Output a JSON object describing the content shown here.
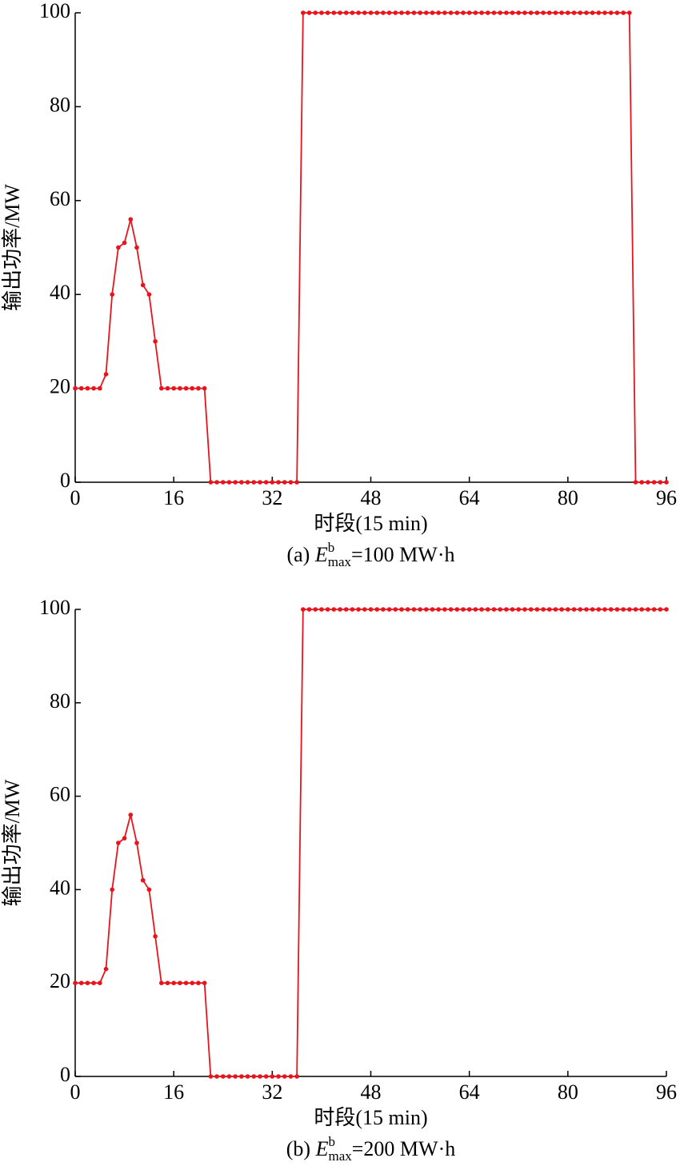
{
  "chart_data": [
    {
      "type": "line",
      "xlabel": "时段(15 min)",
      "ylabel": "输出功率/MW",
      "caption": {
        "prefix": "(a) ",
        "symbol": "E",
        "sup": "b",
        "sub": "max",
        "suffix": "=100 MW·h"
      },
      "xlim": [
        0,
        96
      ],
      "xticks": [
        0,
        16,
        32,
        48,
        64,
        80,
        96
      ],
      "ylim": [
        0,
        100
      ],
      "yticks": [
        0,
        20,
        40,
        60,
        80,
        100
      ],
      "color": "#e8141c",
      "x": [
        0,
        1,
        2,
        3,
        4,
        5,
        6,
        7,
        8,
        9,
        10,
        11,
        12,
        13,
        14,
        15,
        16,
        17,
        18,
        19,
        20,
        21,
        22,
        23,
        24,
        25,
        26,
        27,
        28,
        29,
        30,
        31,
        32,
        33,
        34,
        35,
        36,
        37,
        38,
        39,
        40,
        41,
        42,
        43,
        44,
        45,
        46,
        47,
        48,
        49,
        50,
        51,
        52,
        53,
        54,
        55,
        56,
        57,
        58,
        59,
        60,
        61,
        62,
        63,
        64,
        65,
        66,
        67,
        68,
        69,
        70,
        71,
        72,
        73,
        74,
        75,
        76,
        77,
        78,
        79,
        80,
        81,
        82,
        83,
        84,
        85,
        86,
        87,
        88,
        89,
        90,
        91,
        92,
        93,
        94,
        95,
        96
      ],
      "values": [
        20,
        20,
        20,
        20,
        20,
        23,
        40,
        50,
        51,
        56,
        50,
        42,
        40,
        30,
        20,
        20,
        20,
        20,
        20,
        20,
        20,
        20,
        0,
        0,
        0,
        0,
        0,
        0,
        0,
        0,
        0,
        0,
        0,
        0,
        0,
        0,
        0,
        100,
        100,
        100,
        100,
        100,
        100,
        100,
        100,
        100,
        100,
        100,
        100,
        100,
        100,
        100,
        100,
        100,
        100,
        100,
        100,
        100,
        100,
        100,
        100,
        100,
        100,
        100,
        100,
        100,
        100,
        100,
        100,
        100,
        100,
        100,
        100,
        100,
        100,
        100,
        100,
        100,
        100,
        100,
        100,
        100,
        100,
        100,
        100,
        100,
        100,
        100,
        100,
        100,
        100,
        0,
        0,
        0,
        0,
        0,
        0
      ]
    },
    {
      "type": "line",
      "xlabel": "时段(15 min)",
      "ylabel": "输出功率/MW",
      "caption": {
        "prefix": "(b) ",
        "symbol": "E",
        "sup": "b",
        "sub": "max",
        "suffix": "=200 MW·h"
      },
      "xlim": [
        0,
        96
      ],
      "xticks": [
        0,
        16,
        32,
        48,
        64,
        80,
        96
      ],
      "ylim": [
        0,
        100
      ],
      "yticks": [
        0,
        20,
        40,
        60,
        80,
        100
      ],
      "color": "#e8141c",
      "x": [
        0,
        1,
        2,
        3,
        4,
        5,
        6,
        7,
        8,
        9,
        10,
        11,
        12,
        13,
        14,
        15,
        16,
        17,
        18,
        19,
        20,
        21,
        22,
        23,
        24,
        25,
        26,
        27,
        28,
        29,
        30,
        31,
        32,
        33,
        34,
        35,
        36,
        37,
        38,
        39,
        40,
        41,
        42,
        43,
        44,
        45,
        46,
        47,
        48,
        49,
        50,
        51,
        52,
        53,
        54,
        55,
        56,
        57,
        58,
        59,
        60,
        61,
        62,
        63,
        64,
        65,
        66,
        67,
        68,
        69,
        70,
        71,
        72,
        73,
        74,
        75,
        76,
        77,
        78,
        79,
        80,
        81,
        82,
        83,
        84,
        85,
        86,
        87,
        88,
        89,
        90,
        91,
        92,
        93,
        94,
        95,
        96
      ],
      "values": [
        20,
        20,
        20,
        20,
        20,
        23,
        40,
        50,
        51,
        56,
        50,
        42,
        40,
        30,
        20,
        20,
        20,
        20,
        20,
        20,
        20,
        20,
        0,
        0,
        0,
        0,
        0,
        0,
        0,
        0,
        0,
        0,
        0,
        0,
        0,
        0,
        0,
        100,
        100,
        100,
        100,
        100,
        100,
        100,
        100,
        100,
        100,
        100,
        100,
        100,
        100,
        100,
        100,
        100,
        100,
        100,
        100,
        100,
        100,
        100,
        100,
        100,
        100,
        100,
        100,
        100,
        100,
        100,
        100,
        100,
        100,
        100,
        100,
        100,
        100,
        100,
        100,
        100,
        100,
        100,
        100,
        100,
        100,
        100,
        100,
        100,
        100,
        100,
        100,
        100,
        100,
        100,
        100,
        100,
        100,
        100,
        100
      ]
    }
  ]
}
